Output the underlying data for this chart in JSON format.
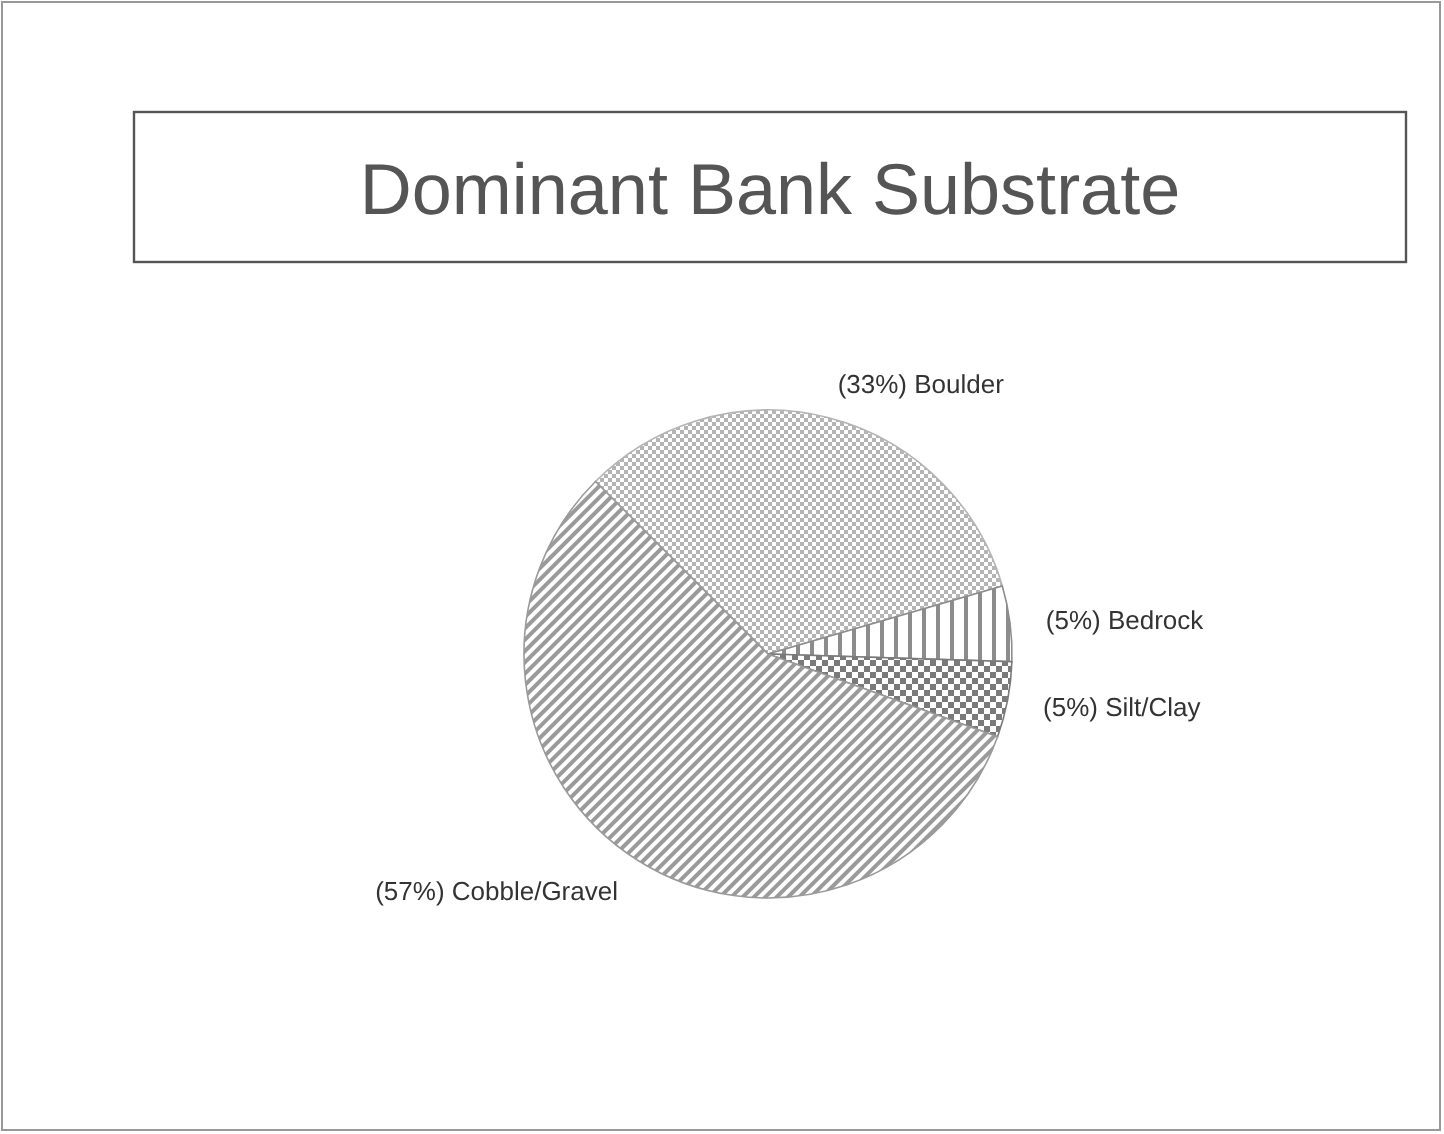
{
  "chart_data": {
    "type": "pie",
    "title": "Dominant Bank Substrate",
    "categories": [
      "Boulder",
      "Bedrock",
      "Silt/Clay",
      "Cobble/Gravel"
    ],
    "values": [
      33,
      5,
      5,
      57
    ],
    "colors": [
      "#b4b4b4",
      "#8c8c8c",
      "#7a7a7a",
      "#9a9a9a"
    ],
    "value_labels": [
      "(33%)",
      "(5%)",
      "(5%)",
      "(57%)"
    ]
  }
}
